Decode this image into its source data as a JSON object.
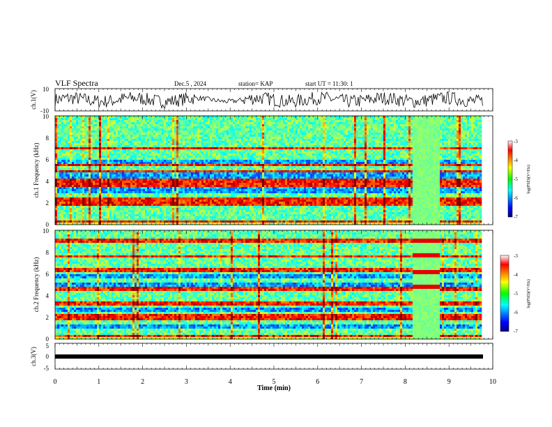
{
  "header": {
    "title": "VLF Spectra",
    "date": "Dec.5 , 2024",
    "station": "station= KAP",
    "start_ut": "start UT = 11:30: 1"
  },
  "chart_data": [
    {
      "name": "ch1-voltage",
      "type": "line",
      "ylabel": "ch.1(V)",
      "ylim": [
        -10,
        10
      ],
      "yticks": [
        "10",
        "-10"
      ],
      "xlim": [
        0,
        10
      ],
      "description_values": "noisy waveform, amplitude mostly within +/-7 V, quieter segment near 3.3-4.2 min"
    },
    {
      "name": "ch1-spectrogram",
      "type": "heatmap",
      "ylabel": "ch.1 Frequency (kHz)",
      "ylim": [
        0,
        10
      ],
      "yticks": [
        "0",
        "2",
        "4",
        "6",
        "8",
        "10"
      ],
      "xlim": [
        0,
        9.85
      ],
      "colorbar": {
        "label": "log(PSD)(V²/Hz)",
        "ticks": [
          "-3",
          "-4",
          "-5",
          "-6",
          "-7"
        ],
        "range": [
          -7,
          -3
        ]
      },
      "strong_bands_khz": [
        0.3,
        1.9,
        2.3,
        3.6,
        4.1,
        4.9,
        5.5,
        7.0
      ],
      "quiet_bands_khz": [
        3.0,
        3.2,
        4.4,
        4.7,
        5.8
      ],
      "transmitter_block": {
        "t_start": 8.15,
        "t_end": 8.75
      }
    },
    {
      "name": "ch2-spectrogram",
      "type": "heatmap",
      "ylabel": "ch.2 Frequency (kHz)",
      "ylim": [
        0,
        10
      ],
      "yticks": [
        "0",
        "2",
        "4",
        "6",
        "8",
        "10"
      ],
      "xlim": [
        0,
        9.85
      ],
      "colorbar": {
        "label": "log(PSD)(V²/Hz)",
        "ticks": [
          "-3",
          "-4",
          "-5",
          "-6",
          "-7"
        ],
        "range": [
          -7,
          -3
        ]
      },
      "strong_bands_khz": [
        0.3,
        1.8,
        2.1,
        3.3,
        4.6,
        6.3,
        7.6,
        9.0
      ],
      "quiet_bands_khz": [
        1.2,
        2.7,
        5.0,
        5.8
      ],
      "transmitter_block": {
        "t_start": 8.15,
        "t_end": 8.75,
        "tones_khz": [
          4.8,
          6.2,
          7.7,
          9.1
        ]
      }
    },
    {
      "name": "ch3-voltage",
      "type": "line",
      "ylabel": "ch.3(V)",
      "ylim": [
        -5,
        5
      ],
      "yticks": [
        "5",
        "0",
        "-5"
      ],
      "xlim": [
        0,
        10
      ],
      "constant_value": -0.8
    },
    {
      "name": "time-axis",
      "xlabel": "Time (min)",
      "xticks": [
        "0",
        "1",
        "2",
        "3",
        "4",
        "5",
        "6",
        "7",
        "8",
        "9",
        "10"
      ]
    }
  ]
}
